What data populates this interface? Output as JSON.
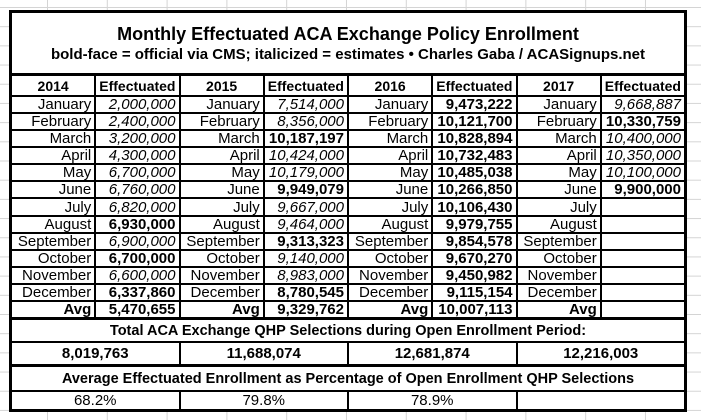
{
  "title": "Monthly Effectuated ACA Exchange Policy Enrollment",
  "subtitle": "bold-face = official via CMS; italicized = estimates  •  Charles Gaba / ACASignups.net",
  "effectuated_label": "Effectuated",
  "avg_label": "Avg",
  "months": [
    "January",
    "February",
    "March",
    "April",
    "May",
    "June",
    "July",
    "August",
    "September",
    "October",
    "November",
    "December"
  ],
  "years": [
    {
      "year": "2014",
      "monthly": [
        {
          "v": "2,000,000",
          "s": "italic"
        },
        {
          "v": "2,400,000",
          "s": "italic"
        },
        {
          "v": "3,200,000",
          "s": "italic"
        },
        {
          "v": "4,300,000",
          "s": "italic"
        },
        {
          "v": "6,700,000",
          "s": "italic"
        },
        {
          "v": "6,760,000",
          "s": "italic"
        },
        {
          "v": "6,820,000",
          "s": "italic"
        },
        {
          "v": "6,930,000",
          "s": "bold"
        },
        {
          "v": "6,900,000",
          "s": "italic"
        },
        {
          "v": "6,700,000",
          "s": "bold"
        },
        {
          "v": "6,600,000",
          "s": "italic"
        },
        {
          "v": "6,337,860",
          "s": "bold"
        }
      ],
      "avg": {
        "v": "5,470,655",
        "s": "bold"
      }
    },
    {
      "year": "2015",
      "monthly": [
        {
          "v": "7,514,000",
          "s": "italic"
        },
        {
          "v": "8,356,000",
          "s": "italic"
        },
        {
          "v": "10,187,197",
          "s": "bold"
        },
        {
          "v": "10,424,000",
          "s": "italic"
        },
        {
          "v": "10,179,000",
          "s": "italic"
        },
        {
          "v": "9,949,079",
          "s": "bold"
        },
        {
          "v": "9,667,000",
          "s": "italic"
        },
        {
          "v": "9,464,000",
          "s": "italic"
        },
        {
          "v": "9,313,323",
          "s": "bold"
        },
        {
          "v": "9,140,000",
          "s": "italic"
        },
        {
          "v": "8,983,000",
          "s": "italic"
        },
        {
          "v": "8,780,545",
          "s": "bold"
        }
      ],
      "avg": {
        "v": "9,329,762",
        "s": "bold"
      }
    },
    {
      "year": "2016",
      "monthly": [
        {
          "v": "9,473,222",
          "s": "bold"
        },
        {
          "v": "10,121,700",
          "s": "bold"
        },
        {
          "v": "10,828,894",
          "s": "bold"
        },
        {
          "v": "10,732,483",
          "s": "bold"
        },
        {
          "v": "10,485,038",
          "s": "bold"
        },
        {
          "v": "10,266,850",
          "s": "bold"
        },
        {
          "v": "10,106,430",
          "s": "bold"
        },
        {
          "v": "9,979,755",
          "s": "bold"
        },
        {
          "v": "9,854,578",
          "s": "bold"
        },
        {
          "v": "9,670,270",
          "s": "bold"
        },
        {
          "v": "9,450,982",
          "s": "bold"
        },
        {
          "v": "9,115,154",
          "s": "bold"
        }
      ],
      "avg": {
        "v": "10,007,113",
        "s": "bold"
      }
    },
    {
      "year": "2017",
      "monthly": [
        {
          "v": "9,668,887",
          "s": "italic"
        },
        {
          "v": "10,330,759",
          "s": "bold"
        },
        {
          "v": "10,400,000",
          "s": "italic"
        },
        {
          "v": "10,350,000",
          "s": "italic"
        },
        {
          "v": "10,100,000",
          "s": "italic"
        },
        {
          "v": "9,900,000",
          "s": "bold"
        },
        {
          "v": "",
          "s": ""
        },
        {
          "v": "",
          "s": ""
        },
        {
          "v": "",
          "s": ""
        },
        {
          "v": "",
          "s": ""
        },
        {
          "v": "",
          "s": ""
        },
        {
          "v": "",
          "s": ""
        }
      ],
      "avg": {
        "v": "",
        "s": ""
      }
    }
  ],
  "qhp": {
    "header": "Total ACA Exchange QHP Selections during Open Enrollment Period:",
    "values": [
      "8,019,763",
      "11,688,074",
      "12,681,874",
      "12,216,003"
    ]
  },
  "pct": {
    "header": "Average Effectuated Enrollment as Percentage of Open Enrollment QHP Selections",
    "values": [
      "68.2%",
      "79.8%",
      "78.9%",
      ""
    ]
  },
  "colors": {
    "border": "#000000",
    "gridline": "#d4d4d4",
    "background": "#ffffff",
    "text": "#000000"
  }
}
